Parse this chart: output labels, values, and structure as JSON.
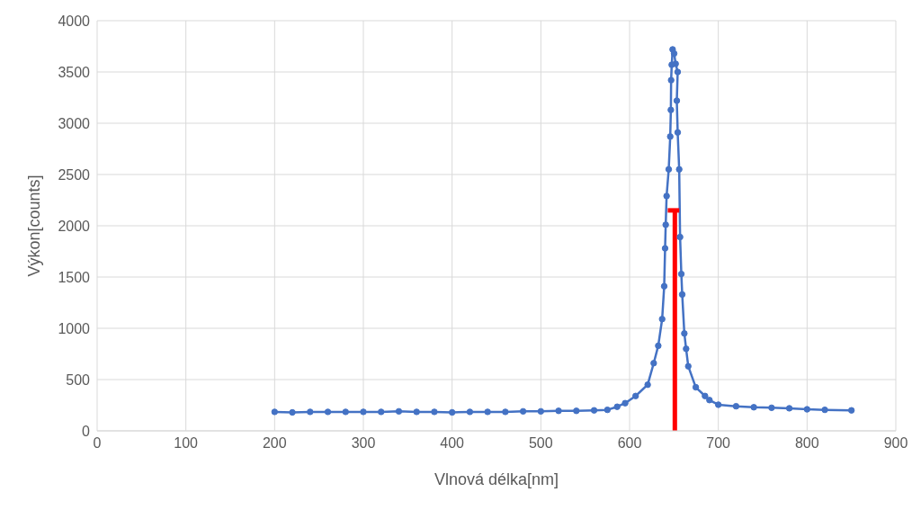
{
  "chart_data": {
    "type": "line",
    "xlabel": "Vlnová délka[nm]",
    "ylabel": "Výkon[counts]",
    "xlim": [
      0,
      900
    ],
    "xticks": [
      0,
      100,
      200,
      300,
      400,
      500,
      600,
      700,
      800,
      900
    ],
    "ylim": [
      0,
      4000
    ],
    "yticks": [
      0,
      500,
      1000,
      1500,
      2000,
      2500,
      3000,
      3500,
      4000
    ],
    "grid": true,
    "marker": "circle",
    "line_style": "solid",
    "series": [
      {
        "color": "#4472c4",
        "x": [
          200,
          220,
          240,
          260,
          280,
          300,
          320,
          340,
          360,
          380,
          400,
          420,
          440,
          460,
          480,
          500,
          520,
          540,
          560,
          575,
          586,
          595,
          606.8,
          620.4,
          627.2,
          632.3,
          636.7,
          639,
          640,
          640.7,
          641.7,
          644.1,
          645.8,
          646.5,
          646.8,
          647.5,
          648.5,
          650.2,
          651.9,
          654.2,
          653.2,
          654.2,
          655.9,
          656.9,
          658.3,
          659.3,
          661.7,
          663.7,
          666.1,
          674.6,
          685,
          690,
          700,
          720,
          740,
          760,
          780,
          800,
          820,
          850
        ],
        "values": [
          185,
          180,
          185,
          185,
          185,
          185,
          185,
          190,
          185,
          185,
          180,
          185,
          185,
          185,
          190,
          190,
          195,
          195,
          200,
          205,
          235,
          270,
          340,
          450,
          660,
          830,
          1090,
          1410,
          1780,
          2010,
          2290,
          2550,
          2870,
          3130,
          3420,
          3570,
          3720,
          3680,
          3580,
          3500,
          3220,
          2910,
          2550,
          1890,
          1530,
          1330,
          950,
          800,
          630,
          425,
          340,
          300,
          255,
          240,
          230,
          225,
          220,
          210,
          205,
          200
        ]
      },
      {
        "color": "#ff0000",
        "marker": "none",
        "x": [
          651,
          651
        ],
        "values": [
          0,
          2150
        ]
      },
      {
        "color": "#ff0000",
        "marker": "none",
        "x": [
          643,
          656
        ],
        "values": [
          2150,
          2150
        ]
      }
    ]
  }
}
